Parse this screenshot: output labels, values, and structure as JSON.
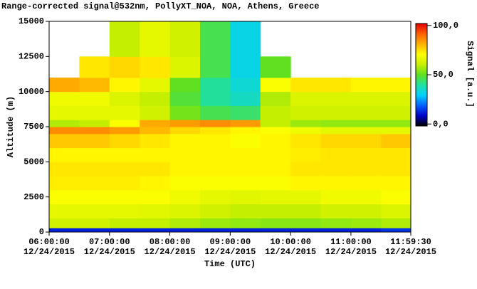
{
  "chart_data": {
    "type": "heatmap",
    "title": "Range-corrected signal@532nm, PollyXT_NOA, NOA, Athens, Greece",
    "x_label": "Time (UTC)",
    "y_label": "Altitude (m)",
    "colorbar_label": "Signal [a.u.]",
    "xlim": [
      6,
      11.991667
    ],
    "xticks": [
      {
        "value": 6,
        "label": "06:00:00"
      },
      {
        "value": 7,
        "label": "07:00:00"
      },
      {
        "value": 8,
        "label": "08:00:00"
      },
      {
        "value": 9,
        "label": "09:00:00"
      },
      {
        "value": 10,
        "label": "10:00:00"
      },
      {
        "value": 11,
        "label": "11:00:00"
      },
      {
        "value": 11.991667,
        "label": "11:59:30"
      }
    ],
    "xtick_dates": [
      "12/24/2015",
      "12/24/2015",
      "12/24/2015",
      "12/24/2015",
      "12/24/2015",
      "12/24/2015",
      "12/24/2015"
    ],
    "ylim": [
      0,
      15000
    ],
    "yticks": [
      0,
      2500,
      5000,
      7500,
      10000,
      12500,
      15000
    ],
    "clim": [
      -2,
      102
    ],
    "cticks": [
      {
        "value": 100,
        "label": "100,0"
      },
      {
        "value": 50,
        "label": "50,0"
      },
      {
        "value": 0,
        "label": "0,0"
      }
    ],
    "colormap": [
      "#000000",
      "#0000c8",
      "#0060ff",
      "#00d0ff",
      "#20e0a0",
      "#60e020",
      "#c8f000",
      "#ffff00",
      "#ffb000",
      "#ff6000",
      "#e00000"
    ],
    "x_bins": [
      6,
      6.5,
      7,
      7.5,
      8,
      8.5,
      9,
      9.5,
      10,
      10.5,
      11,
      11.5,
      11.991667
    ],
    "y_bins": [
      0,
      300,
      1000,
      2000,
      3000,
      4000,
      5000,
      6000,
      7000,
      7500,
      8000,
      9000,
      10000,
      11000,
      12500,
      15000
    ],
    "z": [
      [
        12,
        12,
        12,
        12,
        12,
        12,
        12,
        12,
        12,
        12,
        12,
        14
      ],
      [
        62,
        62,
        60,
        60,
        58,
        56,
        55,
        54,
        54,
        55,
        56,
        58
      ],
      [
        66,
        66,
        66,
        65,
        64,
        62,
        60,
        60,
        60,
        62,
        62,
        64
      ],
      [
        70,
        70,
        70,
        70,
        68,
        66,
        65,
        66,
        66,
        68,
        68,
        70
      ],
      [
        73,
        73,
        73,
        72,
        70,
        70,
        70,
        70,
        72,
        72,
        72,
        72
      ],
      [
        74,
        74,
        74,
        74,
        72,
        72,
        72,
        72,
        74,
        74,
        74,
        74
      ],
      [
        72,
        72,
        72,
        72,
        72,
        72,
        72,
        72,
        73,
        74,
        74,
        74
      ],
      [
        78,
        78,
        76,
        74,
        72,
        72,
        70,
        72,
        74,
        76,
        76,
        78
      ],
      [
        86,
        86,
        84,
        80,
        76,
        74,
        72,
        70,
        68,
        66,
        66,
        66
      ],
      [
        58,
        60,
        70,
        82,
        84,
        86,
        84,
        60,
        56,
        55,
        55,
        55
      ],
      [
        66,
        66,
        66,
        62,
        52,
        46,
        44,
        60,
        62,
        62,
        62,
        62
      ],
      [
        68,
        68,
        64,
        60,
        48,
        40,
        36,
        58,
        64,
        64,
        64,
        64
      ],
      [
        82,
        80,
        72,
        66,
        50,
        40,
        34,
        70,
        74,
        74,
        72,
        72
      ],
      [
        null,
        74,
        76,
        74,
        64,
        46,
        32,
        50,
        null,
        null,
        null,
        null
      ],
      [
        null,
        null,
        60,
        66,
        62,
        46,
        32,
        null,
        null,
        null,
        null,
        null
      ]
    ]
  }
}
